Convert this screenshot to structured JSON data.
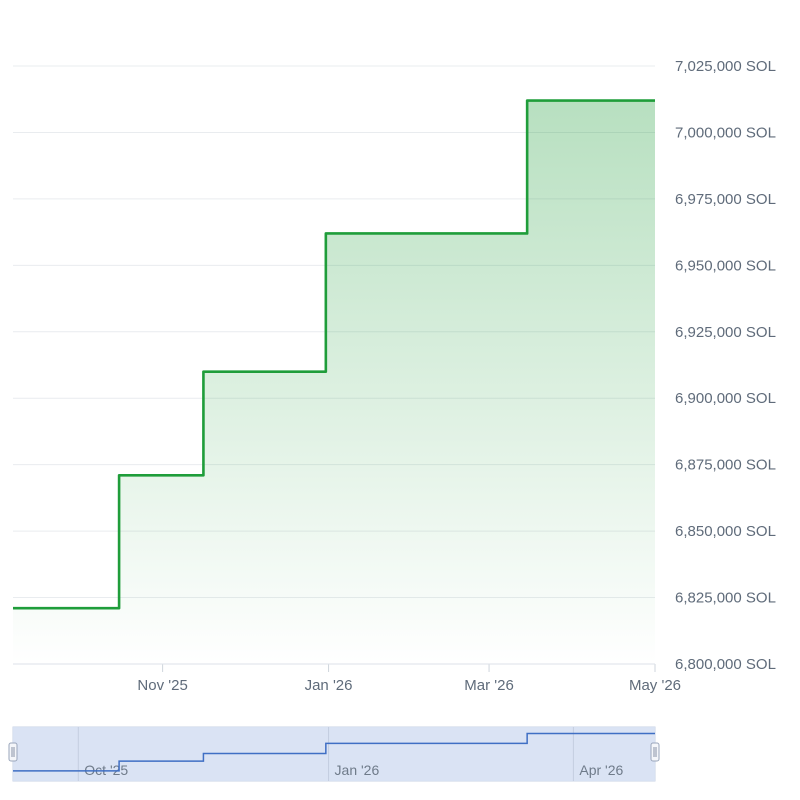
{
  "chart_data": {
    "type": "area",
    "step": true,
    "title": "",
    "xlabel": "",
    "ylabel": "",
    "unit_suffix": " SOL",
    "x_range": [
      "2025-09-07",
      "2026-05-01"
    ],
    "ylim": [
      6800000,
      7025000
    ],
    "y_ticks": [
      6800000,
      6825000,
      6850000,
      6875000,
      6900000,
      6925000,
      6950000,
      6975000,
      7000000,
      7025000
    ],
    "y_tick_labels": [
      "6,800,000 SOL",
      "6,825,000 SOL",
      "6,850,000 SOL",
      "6,875,000 SOL",
      "6,900,000 SOL",
      "6,925,000 SOL",
      "6,950,000 SOL",
      "6,975,000 SOL",
      "7,000,000 SOL",
      "7,025,000 SOL"
    ],
    "x_ticks": [
      {
        "date": "2025-11-01",
        "label": "Nov '25"
      },
      {
        "date": "2026-01-01",
        "label": "Jan '26"
      },
      {
        "date": "2026-03-01",
        "label": "Mar '26"
      },
      {
        "date": "2026-05-01",
        "label": "May '26"
      }
    ],
    "grid": true,
    "series": [
      {
        "color": "#1f9d3a",
        "points": [
          {
            "x": "2025-09-07",
            "y": 6821000
          },
          {
            "x": "2025-10-16",
            "y": 6871000
          },
          {
            "x": "2025-11-16",
            "y": 6910000
          },
          {
            "x": "2025-12-31",
            "y": 6962000
          },
          {
            "x": "2026-03-15",
            "y": 7012000
          },
          {
            "x": "2026-05-01",
            "y": 7012000
          }
        ]
      }
    ],
    "navigator": {
      "line_color": "#3f6fc4",
      "x_ticks": [
        {
          "date": "2025-10-01",
          "label": "Oct '25"
        },
        {
          "date": "2026-01-01",
          "label": "Jan '26"
        },
        {
          "date": "2026-04-01",
          "label": "Apr '26"
        }
      ],
      "selected_range": [
        "2025-09-07",
        "2026-05-01"
      ]
    }
  }
}
